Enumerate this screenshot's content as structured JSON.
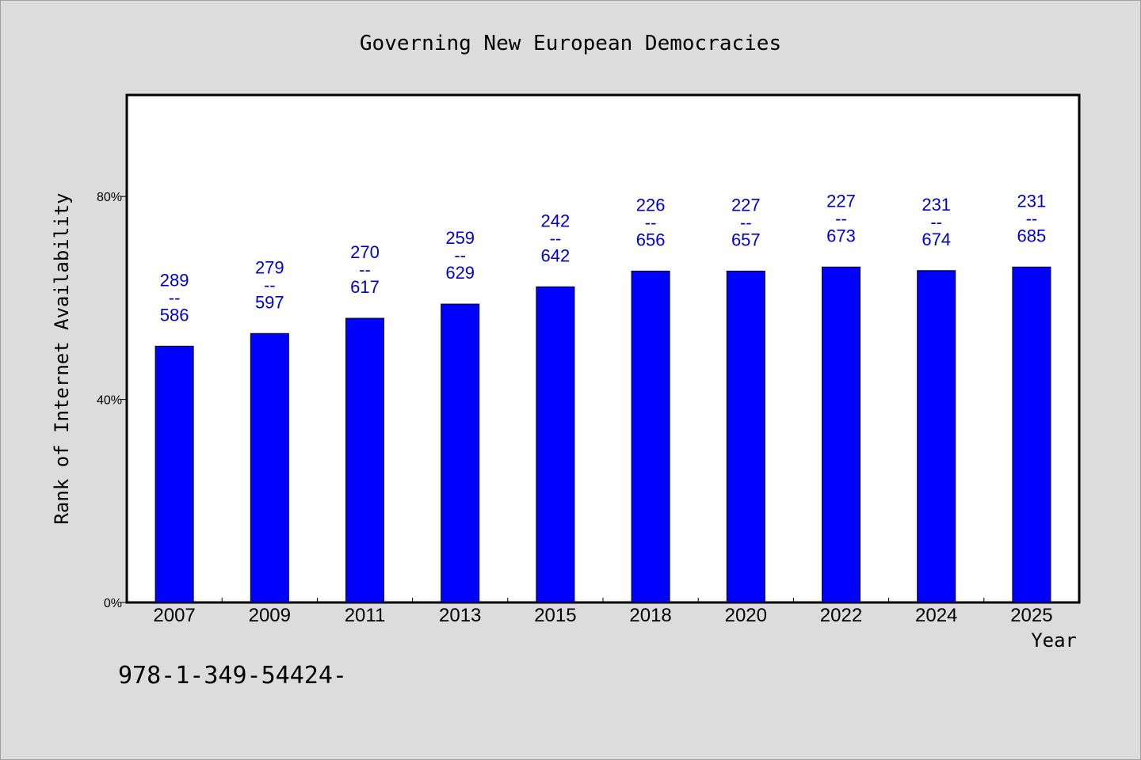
{
  "chart_data": {
    "type": "bar",
    "title": "Governing New European Democracies",
    "xlabel": "Year",
    "ylabel": "Rank of Internet Availability",
    "categories": [
      "2007",
      "2009",
      "2011",
      "2013",
      "2015",
      "2018",
      "2020",
      "2022",
      "2024",
      "2025"
    ],
    "values": [
      50.5,
      53.0,
      56.0,
      58.8,
      62.2,
      65.3,
      65.3,
      66.1,
      65.4,
      66.1
    ],
    "y_unit": "%",
    "ylim": [
      0,
      100
    ],
    "yticks": [
      {
        "value": 0,
        "label": "0%"
      },
      {
        "value": 40,
        "label": "40%"
      },
      {
        "value": 80,
        "label": "80%"
      }
    ],
    "data_labels": [
      {
        "top": "289",
        "mid": "--",
        "bottom": "586"
      },
      {
        "top": "279",
        "mid": "--",
        "bottom": "597"
      },
      {
        "top": "270",
        "mid": "--",
        "bottom": "617"
      },
      {
        "top": "259",
        "mid": "--",
        "bottom": "629"
      },
      {
        "top": "242",
        "mid": "--",
        "bottom": "642"
      },
      {
        "top": "226",
        "mid": "--",
        "bottom": "656"
      },
      {
        "top": "227",
        "mid": "--",
        "bottom": "657"
      },
      {
        "top": "227",
        "mid": "--",
        "bottom": "673"
      },
      {
        "top": "231",
        "mid": "--",
        "bottom": "674"
      },
      {
        "top": "231",
        "mid": "--",
        "bottom": "685"
      }
    ],
    "bar_color": "#0000ff",
    "label_color": "#0000cc",
    "grid": false,
    "legend": "none"
  },
  "footnote": "978-1-349-54424-",
  "colors": {
    "background": "#dcdcdc",
    "plot_background": "#ffffff"
  }
}
